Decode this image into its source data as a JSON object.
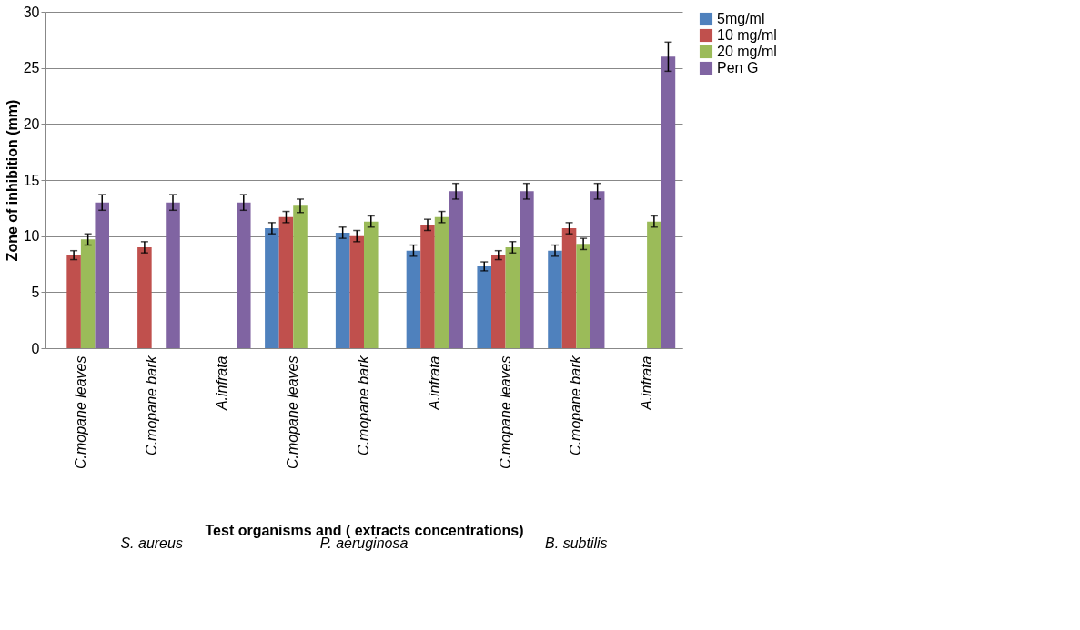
{
  "chart_data": {
    "type": "bar",
    "xlabel": "Test organisms and ( extracts concentrations)",
    "ylabel": "Zone of inhibition (mm)",
    "categories": [
      "C.mopane leaves",
      "C.mopane bark",
      "A.infrata",
      "C.mopane leaves",
      "C.mopane bark",
      "A.infrata",
      "C.mopane leaves",
      "C.mopane bark",
      "A.infrata"
    ],
    "series": [
      {
        "name": "5mg/ml",
        "color": "#4f81bd",
        "values": [
          0,
          0,
          0,
          10.7,
          10.3,
          8.7,
          7.3,
          8.7,
          0
        ],
        "errors": [
          null,
          null,
          null,
          0.5,
          0.5,
          0.5,
          0.4,
          0.5,
          null
        ]
      },
      {
        "name": "10 mg/ml",
        "color": "#c0504d",
        "values": [
          8.3,
          9,
          0,
          11.7,
          10,
          11,
          8.3,
          10.7,
          0
        ],
        "errors": [
          0.4,
          0.5,
          null,
          0.5,
          0.5,
          0.5,
          0.4,
          0.5,
          null
        ]
      },
      {
        "name": "20 mg/ml",
        "color": "#9bbb59",
        "values": [
          9.7,
          0,
          0,
          12.7,
          11.3,
          11.7,
          9,
          9.3,
          11.3
        ],
        "errors": [
          0.5,
          null,
          null,
          0.6,
          0.5,
          0.5,
          0.5,
          0.5,
          0.5
        ]
      },
      {
        "name": "Pen G",
        "color": "#8064a2",
        "values": [
          13,
          13,
          13,
          0,
          0,
          14,
          14,
          14,
          26
        ],
        "errors": [
          0.7,
          0.7,
          0.7,
          null,
          null,
          0.7,
          0.7,
          0.7,
          1.3
        ]
      }
    ],
    "ylim": [
      0,
      30
    ],
    "yticks": [
      0,
      5,
      10,
      15,
      20,
      25,
      30
    ],
    "grid": "y",
    "legend": "right",
    "annotations": [
      "S. aureus",
      "P. aeruginosa",
      "B. subtilis"
    ]
  }
}
